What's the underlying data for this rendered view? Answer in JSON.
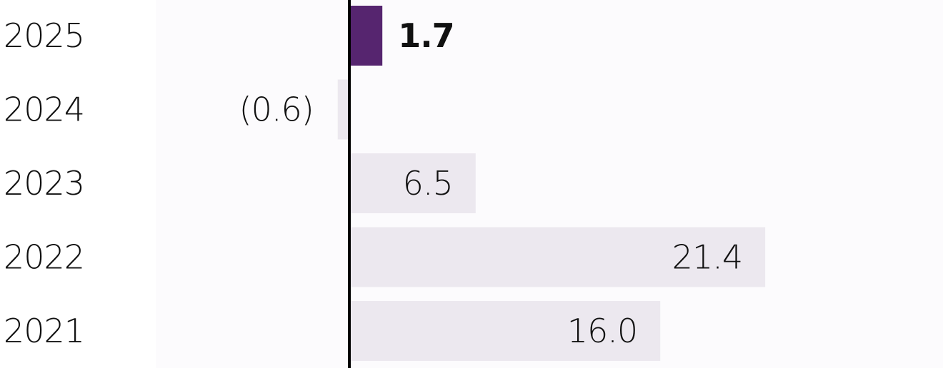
{
  "chart_data": {
    "type": "bar",
    "orientation": "horizontal",
    "categories": [
      "2025",
      "2024",
      "2023",
      "2022",
      "2021"
    ],
    "values": [
      1.7,
      -0.6,
      6.5,
      21.4,
      16.0
    ],
    "value_labels": [
      "1.7",
      "(0.6)",
      "6.5",
      "21.4",
      "16.0"
    ],
    "highlight_index": 0,
    "xlim": [
      -1,
      30
    ],
    "grid": false,
    "legend": "none",
    "colors": {
      "bar": "#ece8ef",
      "highlight": "#56256f",
      "axis": "#000000",
      "panel": "#fcfbfd"
    }
  }
}
